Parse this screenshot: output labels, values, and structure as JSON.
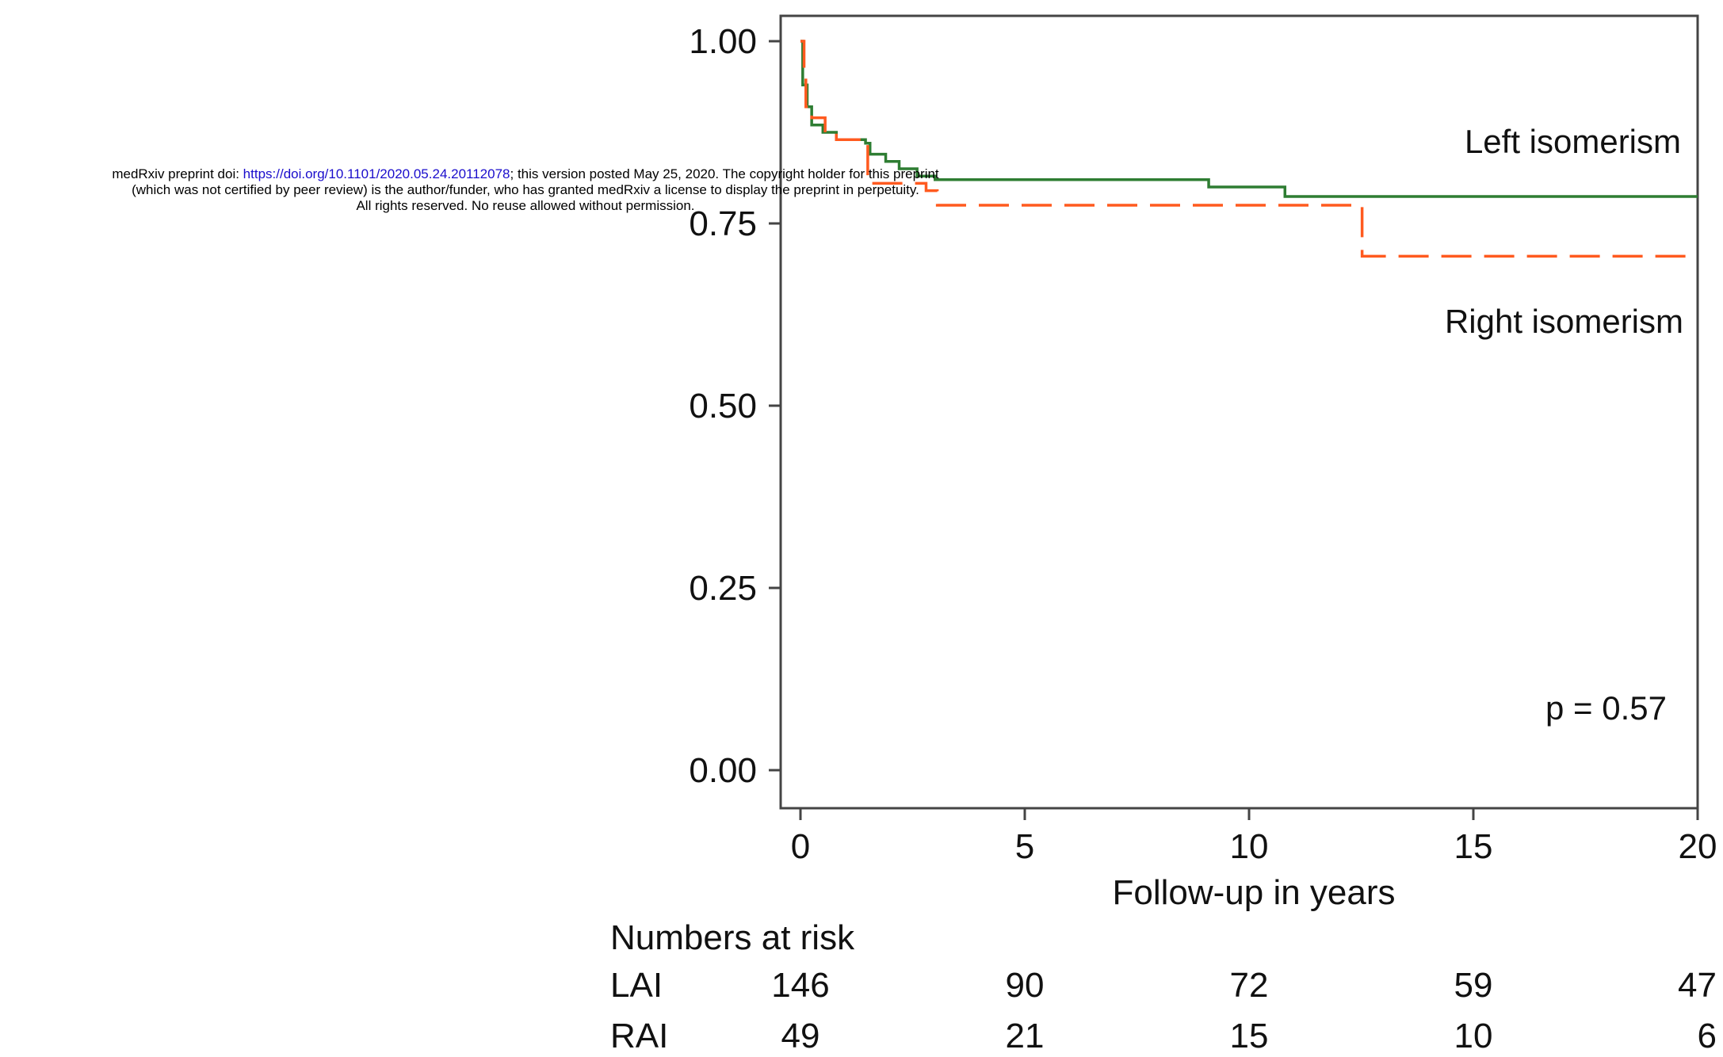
{
  "header": {
    "line1_prefix": "medRxiv preprint doi: ",
    "line1_link": "https://doi.org/10.1101/2020.05.24.20112078",
    "line1_suffix": "; this version posted May 25, 2020. The copyright holder for this preprint",
    "line2": "(which was not certified by peer review) is the author/funder, who has granted medRxiv a license to display the preprint in perpetuity.",
    "line3": "All rights reserved. No reuse allowed without permission."
  },
  "chart_data": {
    "type": "line",
    "step": true,
    "title": "",
    "xlabel": "Follow-up in years",
    "ylabel": "",
    "xlim": [
      0,
      20
    ],
    "ylim": [
      0,
      1
    ],
    "x_ticks": [
      0,
      5,
      10,
      15,
      20
    ],
    "x_tick_labels": [
      "0",
      "5",
      "10",
      "15",
      "20"
    ],
    "y_ticks": [
      0,
      0.25,
      0.5,
      0.75,
      1
    ],
    "y_tick_labels": [
      "0.00",
      "0.25",
      "0.50",
      "0.75",
      "1.00"
    ],
    "grid": false,
    "series": [
      {
        "name": "Left isomerism",
        "color": "#2e7d32",
        "line_style": "solid",
        "points": [
          [
            0,
            1.0
          ],
          [
            0.05,
            0.94
          ],
          [
            0.15,
            0.91
          ],
          [
            0.25,
            0.885
          ],
          [
            0.5,
            0.875
          ],
          [
            0.8,
            0.865
          ],
          [
            1.45,
            0.86
          ],
          [
            1.55,
            0.845
          ],
          [
            1.9,
            0.835
          ],
          [
            2.2,
            0.825
          ],
          [
            2.6,
            0.815
          ],
          [
            3.0,
            0.81
          ],
          [
            9.1,
            0.8
          ],
          [
            10.8,
            0.787
          ],
          [
            20,
            0.787
          ]
        ]
      },
      {
        "name": "Right isomerism",
        "color": "#ff5a1f",
        "line_style": "dashed",
        "points": [
          [
            0,
            1.0
          ],
          [
            0.08,
            0.955
          ],
          [
            0.12,
            0.91
          ],
          [
            0.25,
            0.895
          ],
          [
            0.55,
            0.875
          ],
          [
            0.8,
            0.865
          ],
          [
            1.5,
            0.805
          ],
          [
            2.8,
            0.795
          ],
          [
            3.05,
            0.775
          ],
          [
            12.5,
            0.775
          ],
          [
            12.52,
            0.705
          ],
          [
            20,
            0.705
          ]
        ]
      }
    ],
    "annotations": {
      "left_label": "Left isomerism",
      "right_label": "Right isomerism",
      "p_value": "p = 0.57"
    },
    "risk_table": {
      "title": "Numbers at risk",
      "times": [
        0,
        5,
        10,
        15,
        20
      ],
      "rows": [
        {
          "label": "LAI",
          "values": [
            "146",
            "90",
            "72",
            "59",
            "47"
          ]
        },
        {
          "label": "RAI",
          "values": [
            "49",
            "21",
            "15",
            "10",
            "6"
          ]
        }
      ]
    }
  }
}
